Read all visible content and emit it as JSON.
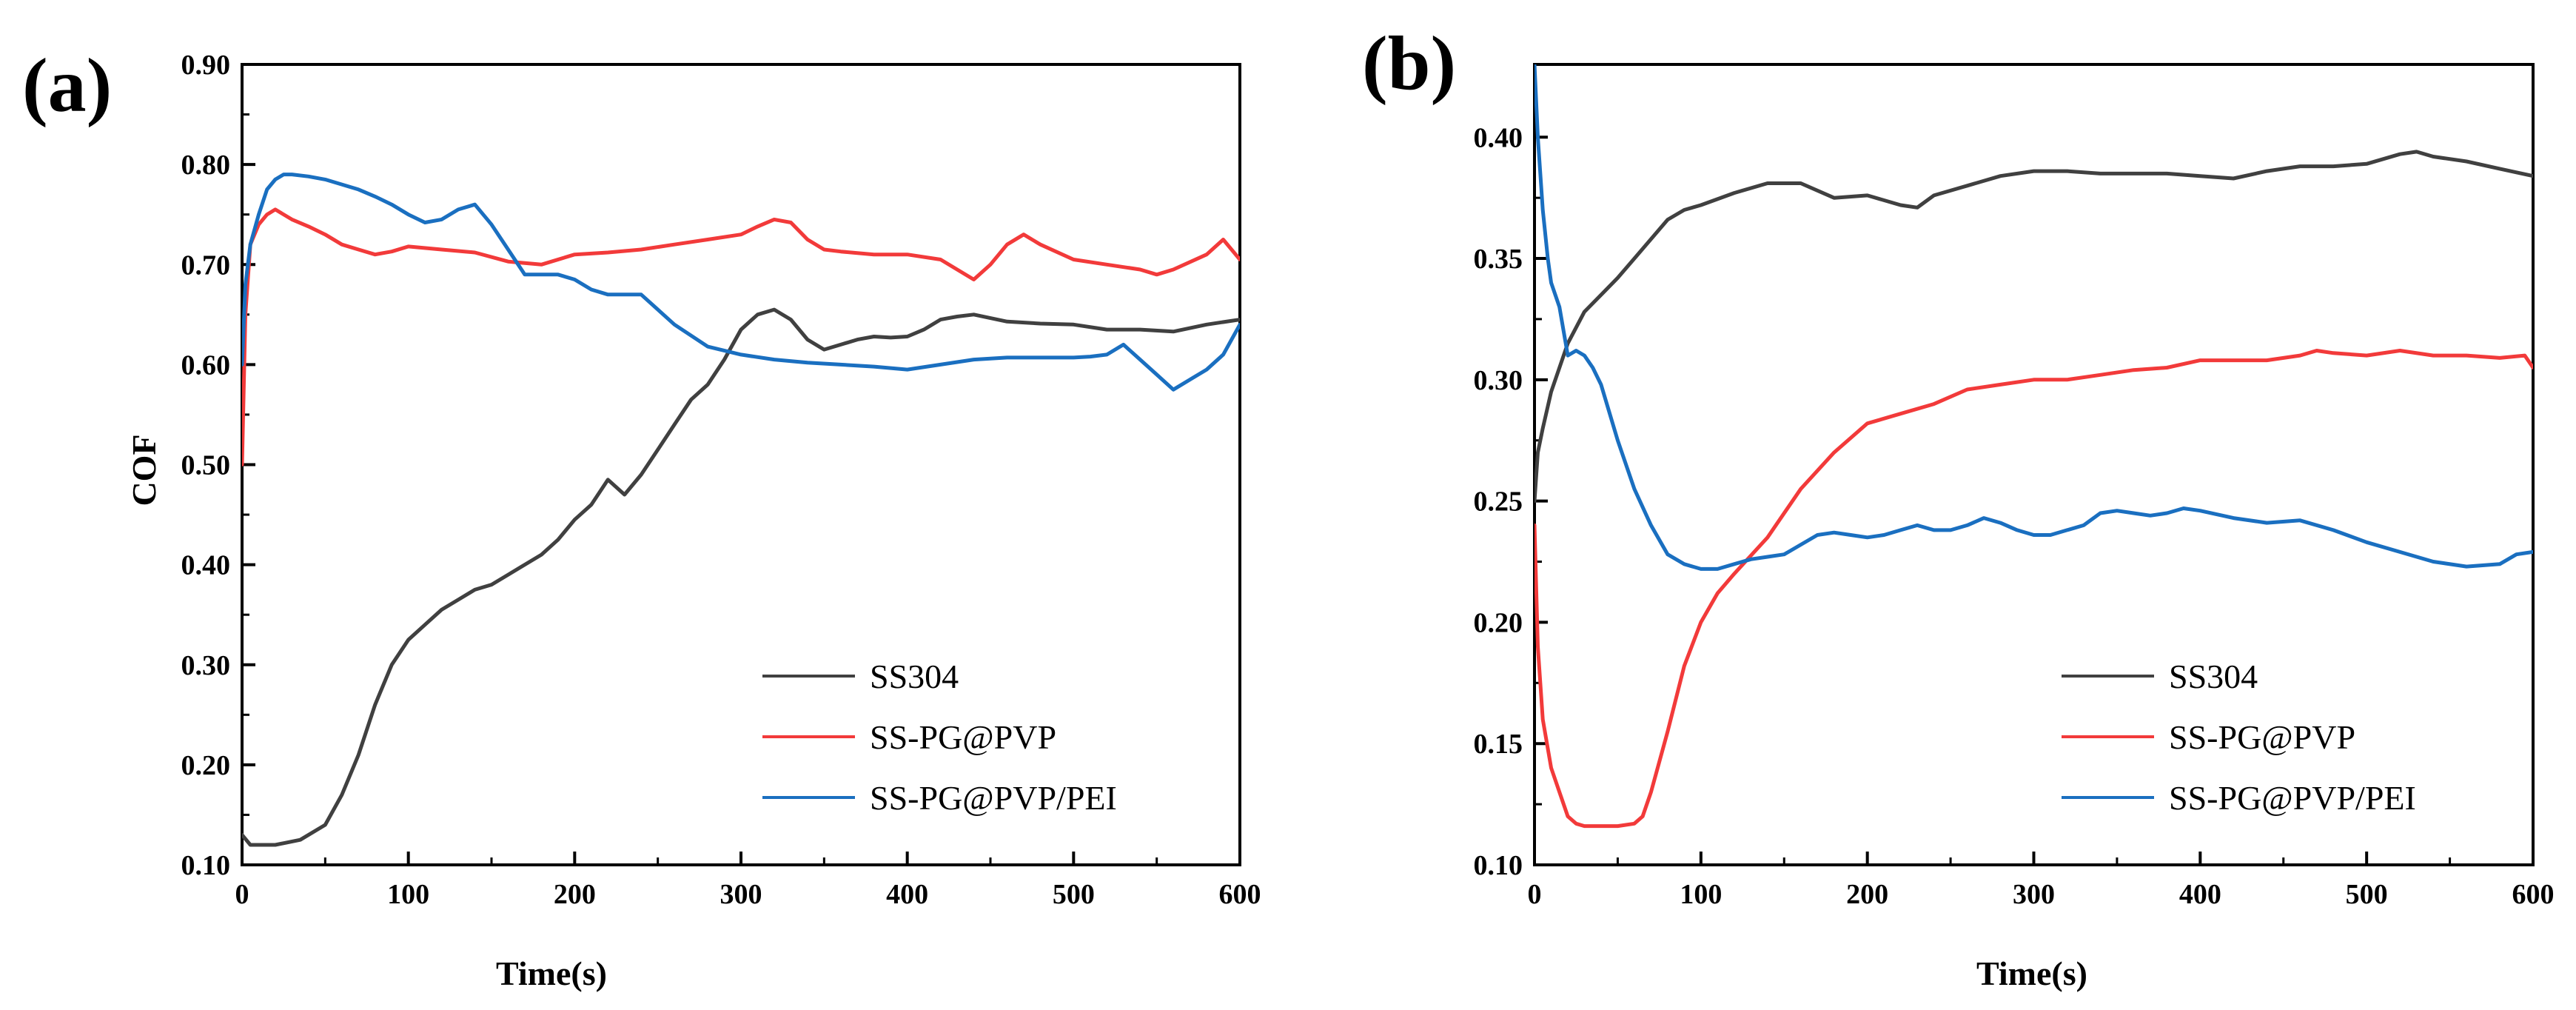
{
  "colors": {
    "SS304": "#404040",
    "SS-PG@PVP": "#f23a3a",
    "SS-PG@PVP/PEI": "#1a6fc0"
  },
  "chart_data": [
    {
      "type": "line",
      "panel_label": "(a)",
      "xlabel": "Time(s)",
      "ylabel": "COF",
      "xlim": [
        0,
        600
      ],
      "ylim": [
        0.1,
        0.9
      ],
      "x_ticks": [
        "0",
        "100",
        "200",
        "300",
        "400",
        "500",
        "600"
      ],
      "y_ticks": [
        "0.10",
        "0.20",
        "0.30",
        "0.40",
        "0.50",
        "0.60",
        "0.70",
        "0.80",
        "0.90"
      ],
      "grid": false,
      "legend_position": "bottom-right",
      "series": [
        {
          "name": "SS304",
          "x": [
            0,
            5,
            20,
            35,
            50,
            60,
            70,
            80,
            90,
            100,
            110,
            120,
            130,
            140,
            150,
            160,
            170,
            180,
            190,
            200,
            210,
            220,
            230,
            240,
            250,
            260,
            270,
            280,
            290,
            300,
            310,
            320,
            330,
            340,
            350,
            360,
            370,
            380,
            390,
            400,
            410,
            420,
            430,
            440,
            460,
            480,
            500,
            520,
            540,
            560,
            580,
            600
          ],
          "y": [
            0.13,
            0.12,
            0.12,
            0.125,
            0.14,
            0.17,
            0.21,
            0.26,
            0.3,
            0.325,
            0.34,
            0.355,
            0.365,
            0.375,
            0.38,
            0.39,
            0.4,
            0.41,
            0.425,
            0.445,
            0.46,
            0.485,
            0.47,
            0.49,
            0.515,
            0.54,
            0.565,
            0.58,
            0.605,
            0.635,
            0.65,
            0.655,
            0.645,
            0.625,
            0.615,
            0.62,
            0.625,
            0.628,
            0.627,
            0.628,
            0.635,
            0.645,
            0.648,
            0.65,
            0.643,
            0.641,
            0.64,
            0.635,
            0.635,
            0.633,
            0.64,
            0.645
          ]
        },
        {
          "name": "SS-PG@PVP",
          "x": [
            0,
            2,
            5,
            10,
            15,
            20,
            30,
            40,
            50,
            60,
            70,
            80,
            90,
            100,
            120,
            140,
            160,
            180,
            200,
            220,
            240,
            260,
            280,
            300,
            310,
            320,
            330,
            340,
            350,
            360,
            380,
            400,
            420,
            440,
            450,
            460,
            470,
            480,
            500,
            520,
            540,
            550,
            560,
            580,
            590,
            600
          ],
          "y": [
            0.5,
            0.65,
            0.72,
            0.74,
            0.75,
            0.755,
            0.745,
            0.738,
            0.73,
            0.72,
            0.715,
            0.71,
            0.713,
            0.718,
            0.715,
            0.712,
            0.703,
            0.7,
            0.71,
            0.712,
            0.715,
            0.72,
            0.725,
            0.73,
            0.738,
            0.745,
            0.742,
            0.725,
            0.715,
            0.713,
            0.71,
            0.71,
            0.705,
            0.685,
            0.7,
            0.72,
            0.73,
            0.72,
            0.705,
            0.7,
            0.695,
            0.69,
            0.695,
            0.71,
            0.725,
            0.705
          ]
        },
        {
          "name": "SS-PG@PVP/PEI",
          "x": [
            0,
            2,
            5,
            10,
            15,
            20,
            25,
            30,
            40,
            50,
            60,
            70,
            80,
            90,
            100,
            110,
            120,
            130,
            140,
            150,
            160,
            170,
            180,
            190,
            200,
            210,
            220,
            240,
            260,
            280,
            300,
            320,
            340,
            360,
            380,
            400,
            420,
            440,
            460,
            480,
            500,
            510,
            520,
            530,
            540,
            550,
            560,
            570,
            580,
            590,
            600
          ],
          "y": [
            0.6,
            0.68,
            0.72,
            0.75,
            0.775,
            0.785,
            0.79,
            0.79,
            0.788,
            0.785,
            0.78,
            0.775,
            0.768,
            0.76,
            0.75,
            0.742,
            0.745,
            0.755,
            0.76,
            0.74,
            0.715,
            0.69,
            0.69,
            0.69,
            0.685,
            0.675,
            0.67,
            0.67,
            0.64,
            0.618,
            0.61,
            0.605,
            0.602,
            0.6,
            0.598,
            0.595,
            0.6,
            0.605,
            0.607,
            0.607,
            0.607,
            0.608,
            0.61,
            0.62,
            0.605,
            0.59,
            0.575,
            0.585,
            0.595,
            0.61,
            0.64
          ]
        }
      ]
    },
    {
      "type": "line",
      "panel_label": "(b)",
      "xlabel": "Time(s)",
      "ylabel": "",
      "xlim": [
        0,
        600
      ],
      "ylim": [
        0.1,
        0.43
      ],
      "x_ticks": [
        "0",
        "100",
        "200",
        "300",
        "400",
        "500",
        "600"
      ],
      "y_ticks": [
        "0.10",
        "0.15",
        "0.20",
        "0.25",
        "0.30",
        "0.35",
        "0.40"
      ],
      "grid": false,
      "legend_position": "bottom-right",
      "series": [
        {
          "name": "SS304",
          "x": [
            0,
            2,
            5,
            10,
            20,
            30,
            40,
            50,
            60,
            70,
            80,
            90,
            100,
            120,
            140,
            160,
            180,
            200,
            220,
            230,
            240,
            260,
            280,
            300,
            320,
            340,
            360,
            380,
            400,
            420,
            440,
            460,
            480,
            500,
            520,
            530,
            540,
            560,
            580,
            600
          ],
          "y": [
            0.25,
            0.27,
            0.28,
            0.295,
            0.315,
            0.328,
            0.335,
            0.342,
            0.35,
            0.358,
            0.366,
            0.37,
            0.372,
            0.377,
            0.381,
            0.381,
            0.375,
            0.376,
            0.372,
            0.371,
            0.376,
            0.38,
            0.384,
            0.386,
            0.386,
            0.385,
            0.385,
            0.385,
            0.384,
            0.383,
            0.386,
            0.388,
            0.388,
            0.389,
            0.393,
            0.394,
            0.392,
            0.39,
            0.387,
            0.384
          ]
        },
        {
          "name": "SS-PG@PVP",
          "x": [
            0,
            2,
            5,
            10,
            15,
            20,
            25,
            30,
            40,
            50,
            60,
            65,
            70,
            80,
            90,
            100,
            110,
            120,
            140,
            160,
            180,
            200,
            220,
            240,
            260,
            280,
            300,
            320,
            340,
            360,
            380,
            400,
            420,
            440,
            460,
            470,
            480,
            500,
            520,
            540,
            560,
            580,
            595,
            600
          ],
          "y": [
            0.24,
            0.19,
            0.16,
            0.14,
            0.13,
            0.12,
            0.117,
            0.116,
            0.116,
            0.116,
            0.117,
            0.12,
            0.13,
            0.155,
            0.182,
            0.2,
            0.212,
            0.22,
            0.235,
            0.255,
            0.27,
            0.282,
            0.286,
            0.29,
            0.296,
            0.298,
            0.3,
            0.3,
            0.302,
            0.304,
            0.305,
            0.308,
            0.308,
            0.308,
            0.31,
            0.312,
            0.311,
            0.31,
            0.312,
            0.31,
            0.31,
            0.309,
            0.31,
            0.305
          ]
        },
        {
          "name": "SS-PG@PVP/PEI",
          "x": [
            0,
            2,
            5,
            8,
            10,
            15,
            20,
            25,
            30,
            35,
            40,
            50,
            60,
            70,
            80,
            90,
            100,
            110,
            120,
            130,
            140,
            150,
            160,
            170,
            180,
            190,
            200,
            210,
            220,
            230,
            240,
            250,
            260,
            270,
            280,
            290,
            300,
            310,
            320,
            330,
            340,
            350,
            360,
            370,
            380,
            390,
            400,
            420,
            440,
            460,
            480,
            500,
            520,
            540,
            560,
            580,
            590,
            600
          ],
          "y": [
            0.43,
            0.4,
            0.37,
            0.35,
            0.34,
            0.33,
            0.31,
            0.312,
            0.31,
            0.305,
            0.298,
            0.275,
            0.255,
            0.24,
            0.228,
            0.224,
            0.222,
            0.222,
            0.224,
            0.226,
            0.227,
            0.228,
            0.232,
            0.236,
            0.237,
            0.236,
            0.235,
            0.236,
            0.238,
            0.24,
            0.238,
            0.238,
            0.24,
            0.243,
            0.241,
            0.238,
            0.236,
            0.236,
            0.238,
            0.24,
            0.245,
            0.246,
            0.245,
            0.244,
            0.245,
            0.247,
            0.246,
            0.243,
            0.241,
            0.242,
            0.238,
            0.233,
            0.229,
            0.225,
            0.223,
            0.224,
            0.228,
            0.229
          ]
        }
      ]
    }
  ]
}
